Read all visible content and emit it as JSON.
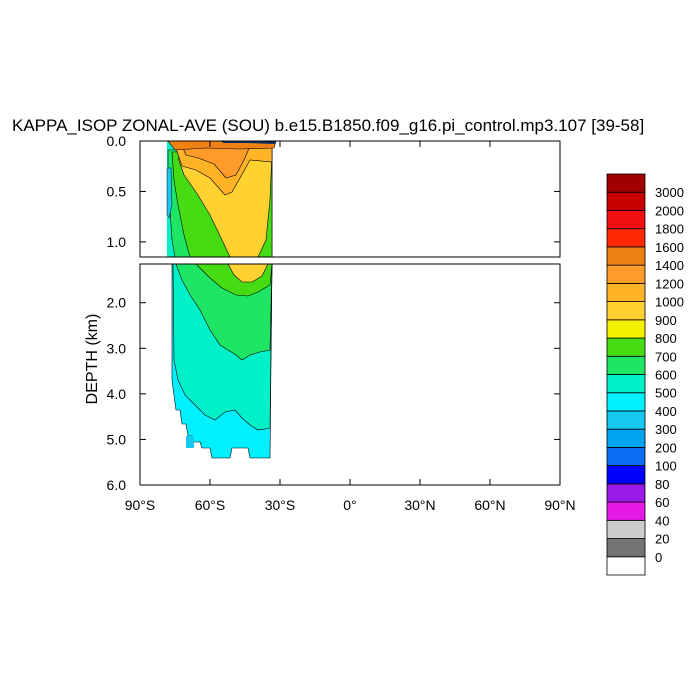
{
  "chart_data": {
    "type": "heatmap",
    "title": "KAPPA_ISOP ZONAL-AVE (SOU) b.e15.B1850.f09_g16.pi_control.mp3.107 [39-58]",
    "ylabel": "DEPTH (km)",
    "xlabel": "",
    "x_range": [
      -90,
      90
    ],
    "x_ticks": [
      {
        "value": -90,
        "label": "90°S"
      },
      {
        "value": -60,
        "label": "60°S"
      },
      {
        "value": -30,
        "label": "30°S"
      },
      {
        "value": 0,
        "label": "0°"
      },
      {
        "value": 30,
        "label": "30°N"
      },
      {
        "value": 60,
        "label": "60°N"
      },
      {
        "value": 90,
        "label": "90°N"
      }
    ],
    "upper_panel": {
      "depth_range": [
        0.0,
        1.15
      ],
      "y_ticks": [
        {
          "value": 0.0,
          "label": "0.0"
        },
        {
          "value": 0.5,
          "label": "0.5"
        },
        {
          "value": 1.0,
          "label": "1.0"
        }
      ]
    },
    "lower_panel": {
      "depth_range": [
        1.15,
        6.0
      ],
      "y_ticks": [
        {
          "value": 2.0,
          "label": "2.0"
        },
        {
          "value": 3.0,
          "label": "3.0"
        },
        {
          "value": 4.0,
          "label": "4.0"
        },
        {
          "value": 5.0,
          "label": "5.0"
        },
        {
          "value": 6.0,
          "label": "6.0"
        }
      ]
    },
    "colorbar": {
      "labels": [
        "0",
        "20",
        "40",
        "60",
        "80",
        "100",
        "200",
        "300",
        "400",
        "500",
        "600",
        "700",
        "800",
        "900",
        "1000",
        "1200",
        "1400",
        "1600",
        "1800",
        "2000",
        "3000"
      ],
      "colors": [
        "#ffffff",
        "#737373",
        "#cdcdcd",
        "#e619e6",
        "#9b19e6",
        "#0000ff",
        "#0a6ef5",
        "#00a5f0",
        "#14c8f0",
        "#00f0ff",
        "#00f0c8",
        "#1ee664",
        "#46dc14",
        "#f5f000",
        "#ffd232",
        "#ffb428",
        "#ff9b28",
        "#f08214",
        "#ff2800",
        "#f01010",
        "#c80000",
        "#a00000"
      ]
    },
    "regions": [
      {
        "level": "500-600",
        "depth_min": 1.15,
        "depth_max": 5.4,
        "lat_min": -74,
        "lat_max": -34
      },
      {
        "level": "600-700",
        "depth_min": 0.3,
        "depth_max": 3.3,
        "lat_min": -73,
        "lat_max": -34
      },
      {
        "level": "700-800",
        "depth_min": 0.2,
        "depth_max": 2.0,
        "lat_min": -70,
        "lat_max": -34
      },
      {
        "level": "900-1000",
        "depth_min": 0.25,
        "depth_max": 1.5,
        "lat_min": -66,
        "lat_max": -36
      },
      {
        "level": "1000-1200",
        "depth_min": 0.1,
        "depth_max": 0.55,
        "lat_min": -70,
        "lat_max": -34
      },
      {
        "level": "1200-1400",
        "depth_min": 0.05,
        "depth_max": 0.45,
        "lat_min": -68,
        "lat_max": -42
      }
    ]
  }
}
